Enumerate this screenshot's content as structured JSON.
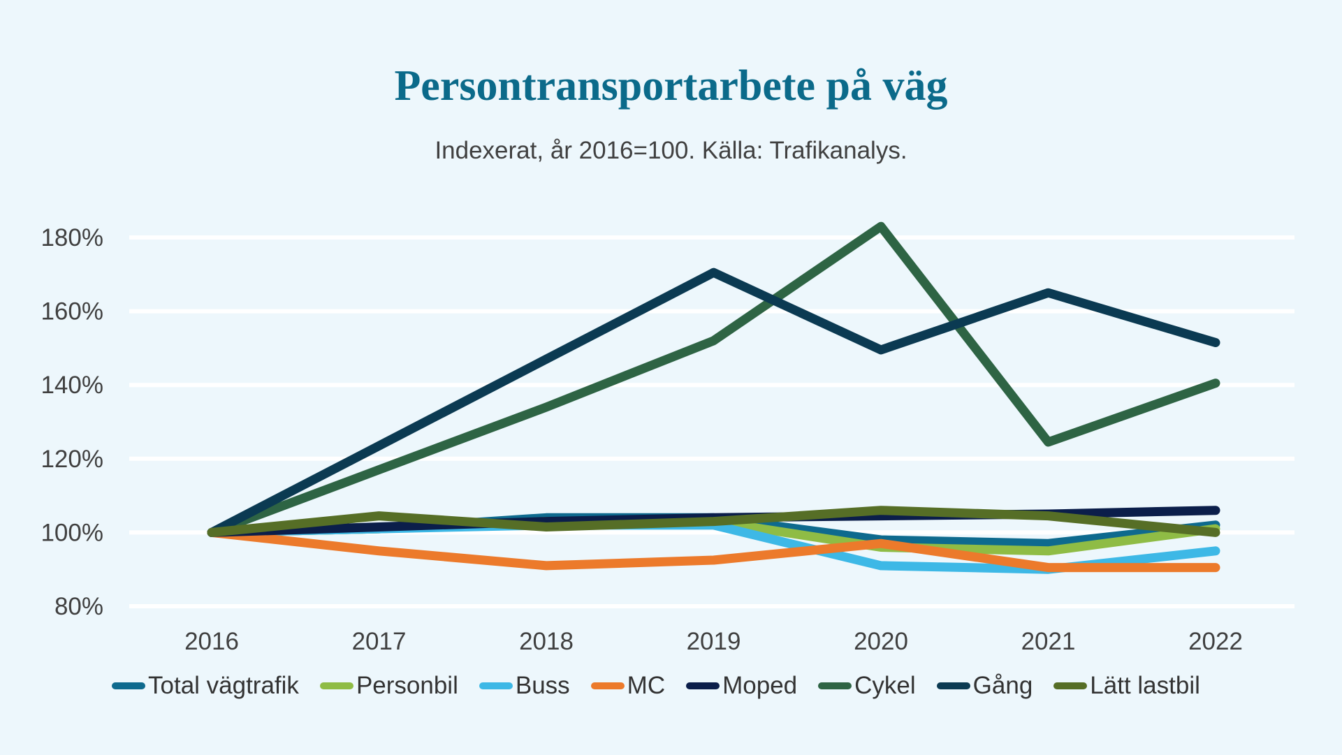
{
  "title": "Persontransportarbete på väg",
  "subtitle": "Indexerat, år 2016=100. Källa: Trafikanalys.",
  "chart_data": {
    "type": "line",
    "title": "Persontransportarbete på väg",
    "subtitle": "Indexerat, år 2016=100. Källa: Trafikanalys.",
    "categories": [
      "2016",
      "2017",
      "2018",
      "2019",
      "2020",
      "2021",
      "2022"
    ],
    "y_ticks": [
      "80%",
      "100%",
      "120%",
      "140%",
      "160%",
      "180%"
    ],
    "ylim": [
      80,
      180
    ],
    "grid": true,
    "legend_position": "bottom",
    "series": [
      {
        "name": "Total vägtrafik",
        "color": "#0e6a8e",
        "values": [
          100,
          101,
          104,
          104,
          98,
          97,
          102
        ]
      },
      {
        "name": "Personbil",
        "color": "#8fbc45",
        "values": [
          100,
          101,
          103,
          103,
          96,
          95,
          101
        ]
      },
      {
        "name": "Buss",
        "color": "#3db8e6",
        "values": [
          100,
          101,
          102,
          102,
          91,
          90,
          95
        ]
      },
      {
        "name": "MC",
        "color": "#ec7a2b",
        "values": [
          100,
          95,
          91,
          92.5,
          97,
          90.5,
          90.5
        ]
      },
      {
        "name": "Moped",
        "color": "#0b1e4a",
        "values": [
          100,
          101.5,
          103,
          104,
          104.5,
          105,
          106
        ]
      },
      {
        "name": "Cykel",
        "color": "#2e6444",
        "values": [
          100,
          117,
          134,
          152,
          183,
          124.5,
          140.5
        ]
      },
      {
        "name": "Gång",
        "color": "#0b3a52",
        "values": [
          100,
          123.5,
          147,
          170.5,
          149.5,
          165,
          151.5
        ]
      },
      {
        "name": "Lätt lastbil",
        "color": "#566e26",
        "values": [
          100,
          104.5,
          101.5,
          103,
          106,
          104.5,
          100
        ]
      }
    ]
  }
}
